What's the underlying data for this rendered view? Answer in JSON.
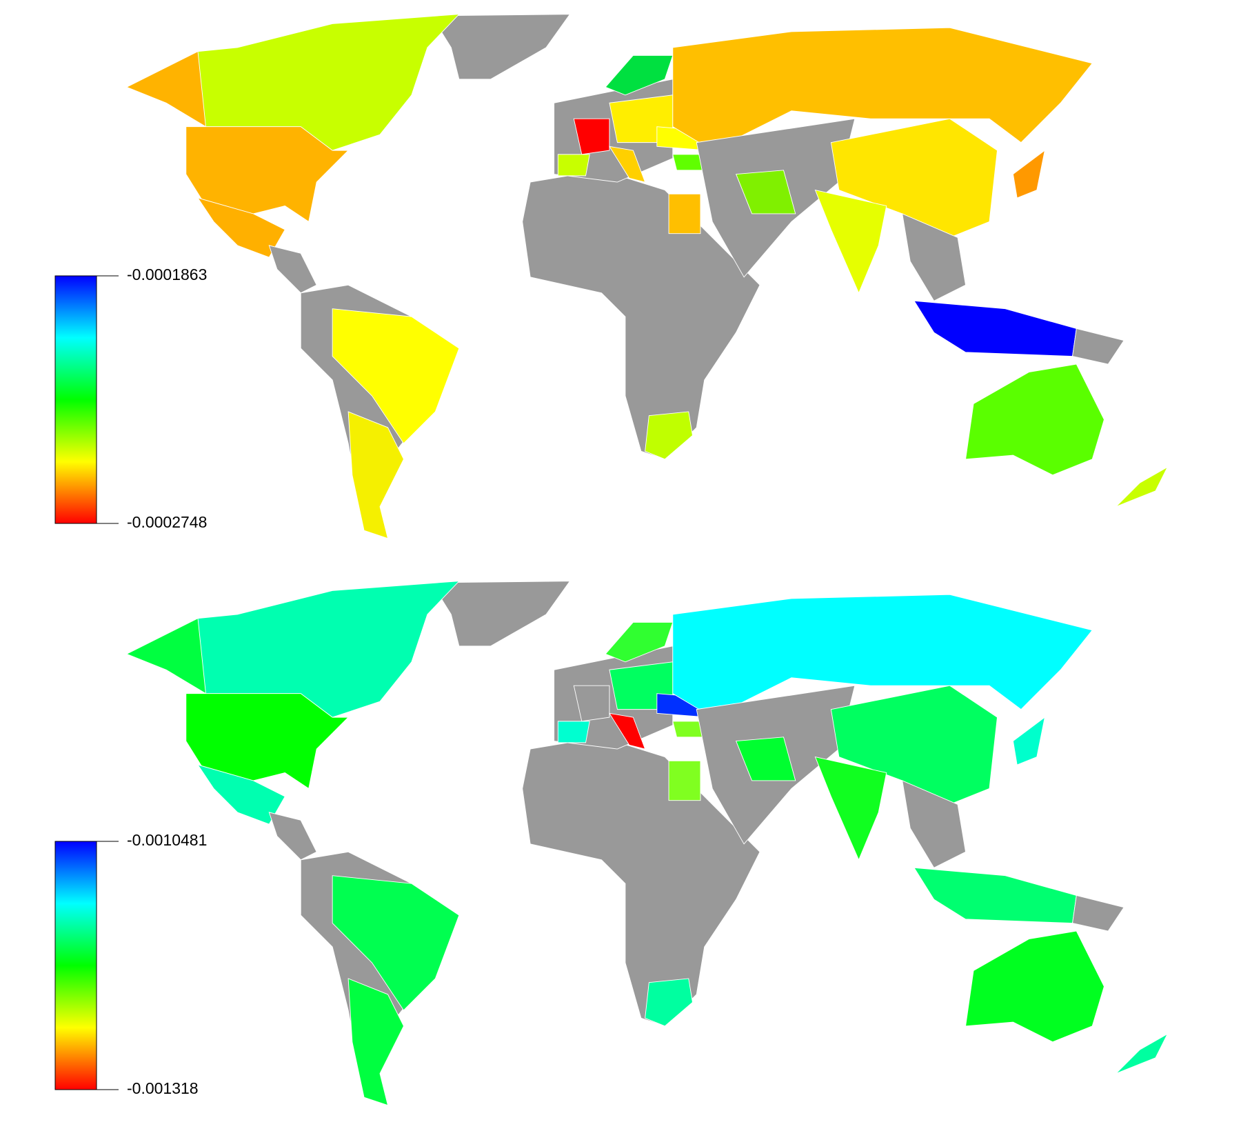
{
  "maps": [
    {
      "colorbar": {
        "ticks": [
          -0.0001863,
          -0.0002748
        ]
      }
    },
    {
      "colorbar": {
        "ticks": [
          -0.0010481,
          -0.001318
        ]
      }
    }
  ]
}
